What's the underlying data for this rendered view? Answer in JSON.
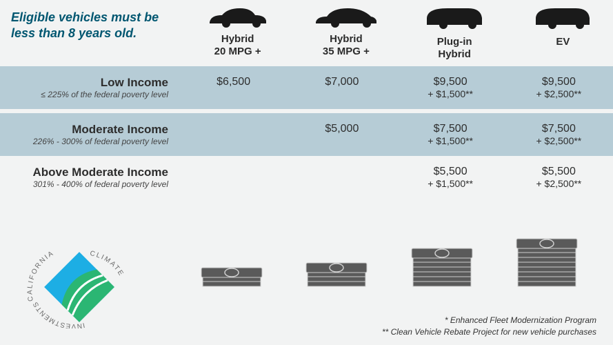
{
  "colors": {
    "background": "#f2f3f3",
    "band": "#b6ccd6",
    "title_text": "#005670",
    "body_text": "#2d2d2d",
    "car_fill": "#1a1a1a",
    "money_fill": "#5a5a5a",
    "money_stroke": "#cfcfcf"
  },
  "header": {
    "title": "Eligible vehicles must be less than 8 years old.",
    "columns": [
      {
        "line1": "Hybrid",
        "line2": "20 MPG +",
        "car": "sedan"
      },
      {
        "line1": "Hybrid",
        "line2": "35 MPG +",
        "car": "hatch"
      },
      {
        "line1": "Plug-in",
        "line2": "Hybrid",
        "car": "suv"
      },
      {
        "line1": "EV",
        "line2": "",
        "car": "suv"
      }
    ]
  },
  "tiers": [
    {
      "name": "Low Income",
      "sub": "≤ 225% of the federal poverty level",
      "band": true,
      "cells": [
        {
          "main": "$6,500",
          "bonus": ""
        },
        {
          "main": "$7,000",
          "bonus": ""
        },
        {
          "main": "$9,500",
          "bonus": "+ $1,500**"
        },
        {
          "main": "$9,500",
          "bonus": "+ $2,500**"
        }
      ]
    },
    {
      "name": "Moderate Income",
      "sub": "226% - 300% of federal poverty level",
      "band": true,
      "cells": [
        {
          "main": "",
          "bonus": ""
        },
        {
          "main": "$5,000",
          "bonus": ""
        },
        {
          "main": "$7,500",
          "bonus": "+ $1,500**"
        },
        {
          "main": "$7,500",
          "bonus": "+ $2,500**"
        }
      ]
    },
    {
      "name": "Above Moderate Income",
      "sub": "301% - 400% of federal poverty level",
      "band": false,
      "cells": [
        {
          "main": "",
          "bonus": ""
        },
        {
          "main": "",
          "bonus": ""
        },
        {
          "main": "$5,500",
          "bonus": "+ $1,500**"
        },
        {
          "main": "$5,500",
          "bonus": "+ $2,500**"
        }
      ]
    }
  ],
  "money_stacks": [
    3,
    4,
    7,
    9
  ],
  "logo": {
    "top_text": "CALIFORNIA",
    "bottom_text": "INVESTMENTS",
    "side_text": "CLIMATE"
  },
  "footnotes": {
    "f1": "* Enhanced Fleet Modernization Program",
    "f2": "** Clean Vehicle Rebate Project for new vehicle purchases"
  }
}
